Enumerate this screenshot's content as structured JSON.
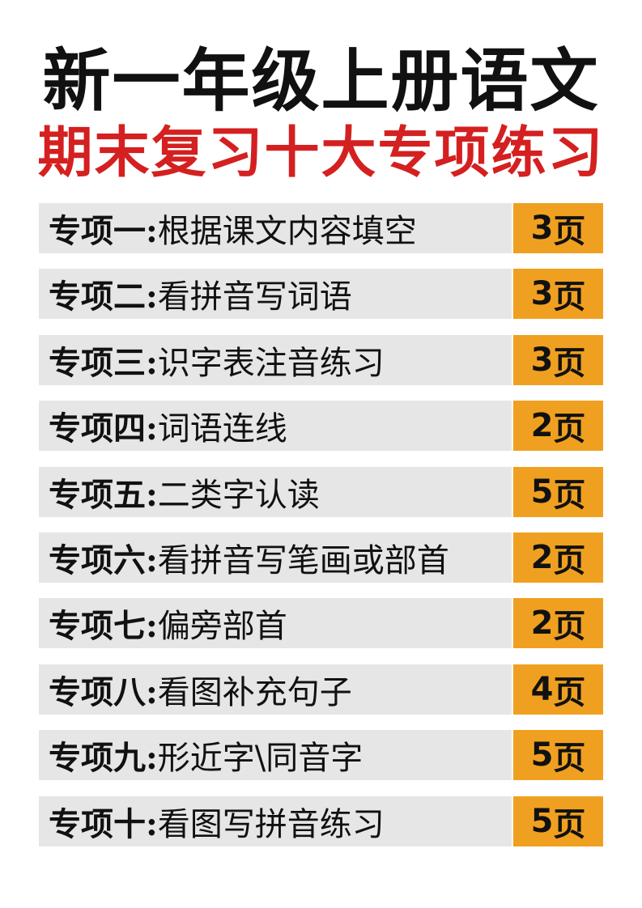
{
  "title": "新一年级上册语文",
  "subtitle": "期末复习十大专项练习",
  "colors": {
    "title": "#111111",
    "subtitle": "#d42020",
    "bar": "#e6e6e6",
    "badge": "#f0a020"
  },
  "items": [
    {
      "prefix": "专项一:",
      "text": "根据课文内容填空",
      "pages": "3",
      "unit": "页"
    },
    {
      "prefix": "专项二:",
      "text": "看拼音写词语",
      "pages": "3",
      "unit": "页"
    },
    {
      "prefix": "专项三:",
      "text": "识字表注音练习",
      "pages": "3",
      "unit": "页"
    },
    {
      "prefix": "专项四:",
      "text": "词语连线",
      "pages": "2",
      "unit": "页"
    },
    {
      "prefix": "专项五:",
      "text": "二类字认读",
      "pages": "5",
      "unit": "页"
    },
    {
      "prefix": "专项六:",
      "text": "看拼音写笔画或部首",
      "pages": "2",
      "unit": "页"
    },
    {
      "prefix": "专项七:",
      "text": "偏旁部首",
      "pages": "2",
      "unit": "页"
    },
    {
      "prefix": "专项八:",
      "text": "看图补充句子",
      "pages": "4",
      "unit": "页"
    },
    {
      "prefix": "专项九:",
      "text": "形近字\\同音字",
      "pages": "5",
      "unit": "页"
    },
    {
      "prefix": "专项十:",
      "text": "看图写拼音练习",
      "pages": "5",
      "unit": "页"
    }
  ]
}
